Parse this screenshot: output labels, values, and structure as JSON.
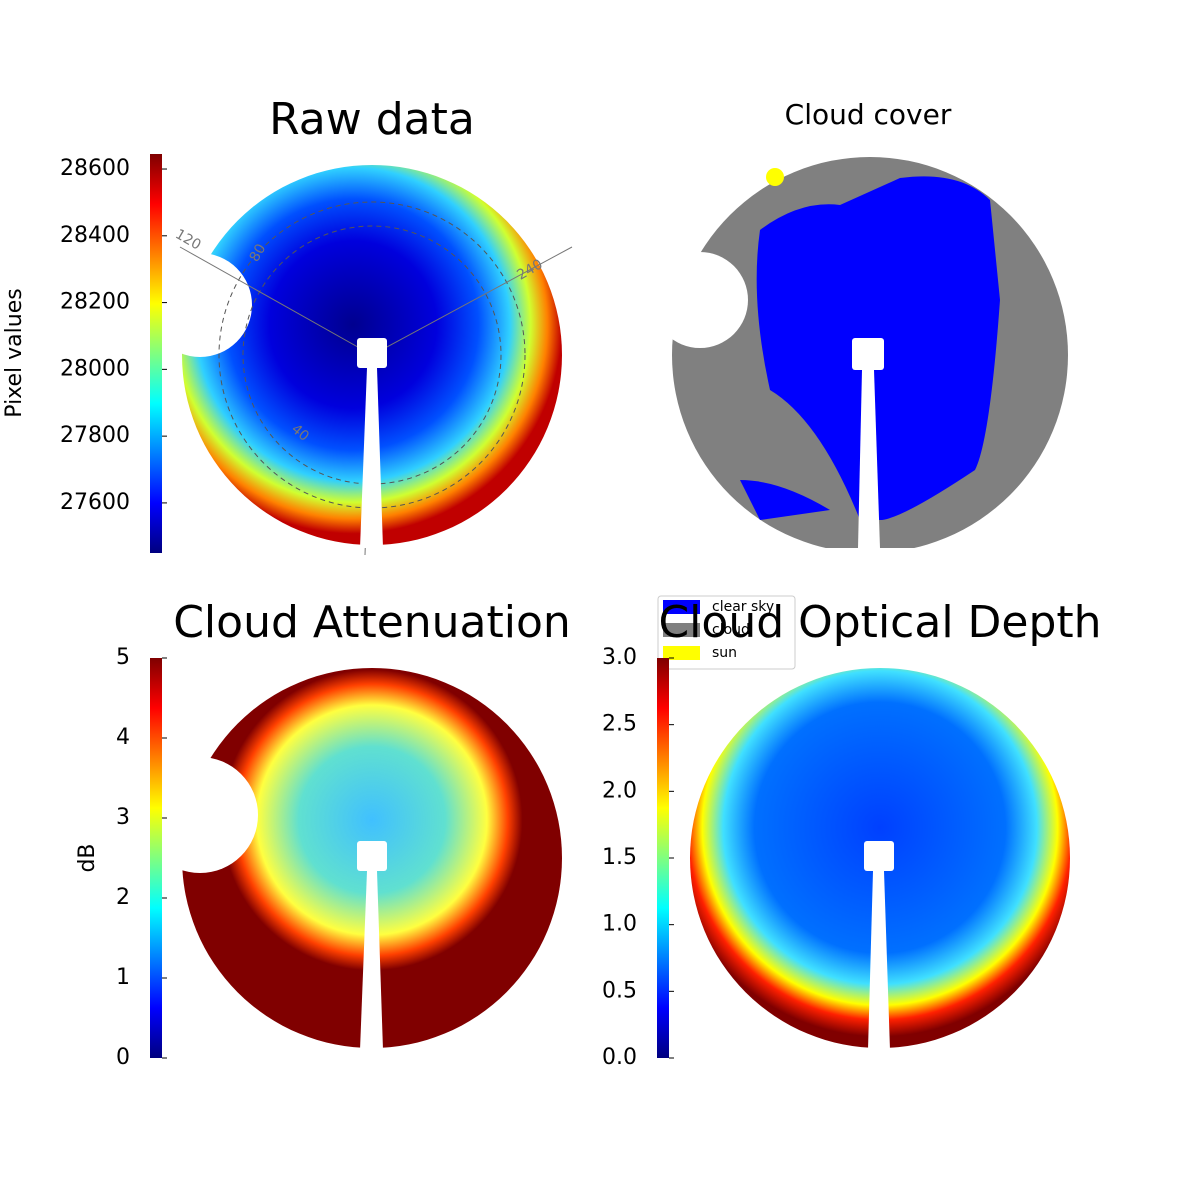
{
  "chart_data": [
    {
      "type": "image",
      "title": "Raw data",
      "colorbar_label": "Pixel values",
      "clim": [
        27450,
        28645
      ],
      "cticks": [
        27600,
        27800,
        28000,
        28200,
        28400,
        28600
      ],
      "annotations": [
        "120",
        "80",
        "240",
        "40"
      ]
    },
    {
      "type": "image",
      "title": "Cloud cover",
      "series": [
        {
          "name": "clear sky",
          "color": "#0000ff"
        },
        {
          "name": "cloud",
          "color": "#808080"
        },
        {
          "name": "sun",
          "color": "#ffff00"
        }
      ]
    },
    {
      "type": "image",
      "title": "Cloud Attenuation",
      "colorbar_label": "dB",
      "clim": [
        0,
        5
      ],
      "cticks": [
        0,
        1,
        2,
        3,
        4,
        5
      ]
    },
    {
      "type": "image",
      "title": "Cloud Optical Depth",
      "clim": [
        0,
        3
      ],
      "cticks": [
        {
          "value": 0,
          "label": "0.0"
        },
        0.5,
        {
          "value": 1,
          "label": "1.0"
        },
        1.5,
        {
          "value": 2,
          "label": "2.0"
        },
        2.5,
        {
          "value": 3,
          "label": "3.0"
        }
      ]
    }
  ]
}
